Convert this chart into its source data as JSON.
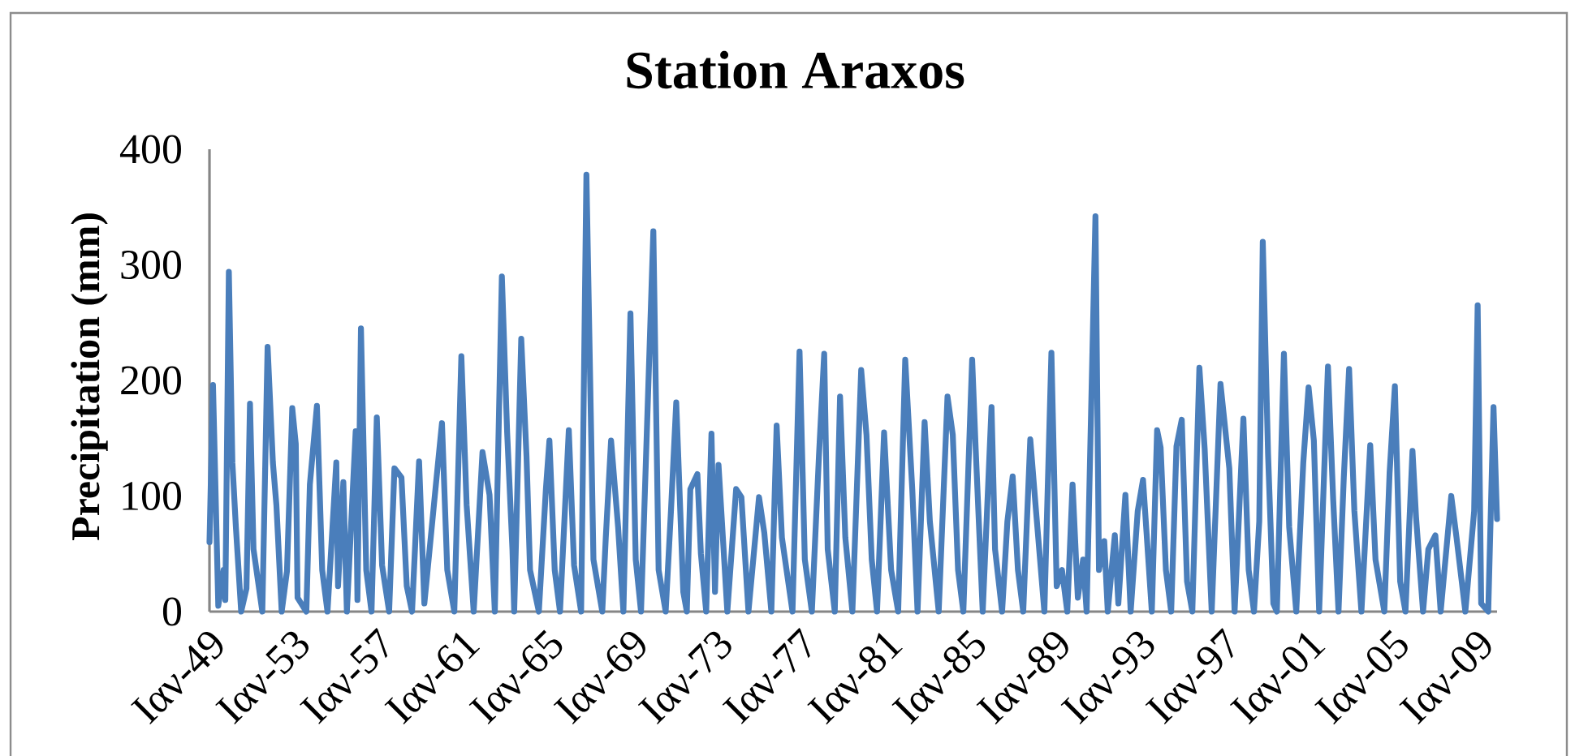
{
  "chart_data": {
    "type": "line",
    "title": "Station Araxos",
    "ylabel": "Precipitation (mm)",
    "marker": "none",
    "ylim": [
      0,
      400
    ],
    "yticks": [
      0,
      100,
      200,
      300,
      400
    ],
    "xlim": [
      "1949-01",
      "2009-12"
    ],
    "xticks": [
      {
        "value": "1949-01",
        "label": "Ιαν-49"
      },
      {
        "value": "1953-01",
        "label": "Ιαν-53"
      },
      {
        "value": "1957-01",
        "label": "Ιαν-57"
      },
      {
        "value": "1961-01",
        "label": "Ιαν-61"
      },
      {
        "value": "1965-01",
        "label": "Ιαν-65"
      },
      {
        "value": "1969-01",
        "label": "Ιαν-69"
      },
      {
        "value": "1973-01",
        "label": "Ιαν-73"
      },
      {
        "value": "1977-01",
        "label": "Ιαν-77"
      },
      {
        "value": "1981-01",
        "label": "Ιαν-81"
      },
      {
        "value": "1985-01",
        "label": "Ιαν-85"
      },
      {
        "value": "1989-01",
        "label": "Ιαν-89"
      },
      {
        "value": "1993-01",
        "label": "Ιαν-93"
      },
      {
        "value": "1997-01",
        "label": "Ιαν-97"
      },
      {
        "value": "2001-01",
        "label": "Ιαν-01"
      },
      {
        "value": "2005-01",
        "label": "Ιαν-05"
      },
      {
        "value": "2009-01",
        "label": "Ιαν-09"
      }
    ],
    "x": [
      "1949-01",
      "1949-03",
      "1949-06",
      "1949-09",
      "1949-10",
      "1949-12",
      "1950-02",
      "1950-04",
      "1950-07",
      "1950-10",
      "1950-12",
      "1951-02",
      "1951-07",
      "1951-10",
      "1952-01",
      "1952-03",
      "1952-06",
      "1952-09",
      "1952-12",
      "1953-02",
      "1953-03",
      "1953-08",
      "1953-10",
      "1954-02",
      "1954-05",
      "1954-08",
      "1955-01",
      "1955-02",
      "1955-05",
      "1955-07",
      "1955-12",
      "1956-01",
      "1956-03",
      "1956-06",
      "1956-09",
      "1956-12",
      "1957-03",
      "1957-07",
      "1957-10",
      "1958-02",
      "1958-05",
      "1958-08",
      "1958-12",
      "1959-03",
      "1959-10",
      "1960-01",
      "1960-04",
      "1960-08",
      "1960-12",
      "1961-03",
      "1961-07",
      "1961-12",
      "1962-04",
      "1962-07",
      "1962-11",
      "1963-02",
      "1963-05",
      "1963-06",
      "1963-10",
      "1964-01",
      "1964-03",
      "1964-08",
      "1964-12",
      "1965-02",
      "1965-05",
      "1965-08",
      "1966-01",
      "1966-04",
      "1966-08",
      "1966-11",
      "1967-03",
      "1967-08",
      "1967-10",
      "1968-01",
      "1968-05",
      "1968-08",
      "1968-12",
      "1969-03",
      "1969-06",
      "1970-01",
      "1970-04",
      "1970-08",
      "1970-11",
      "1971-02",
      "1971-06",
      "1971-08",
      "1971-10",
      "1972-02",
      "1972-04",
      "1972-07",
      "1972-10",
      "1972-12",
      "1973-02",
      "1973-07",
      "1973-12",
      "1974-03",
      "1974-07",
      "1975-01",
      "1975-04",
      "1975-08",
      "1975-11",
      "1976-02",
      "1976-08",
      "1976-12",
      "1977-03",
      "1977-07",
      "1977-11",
      "1978-02",
      "1978-04",
      "1978-08",
      "1978-11",
      "1979-02",
      "1979-06",
      "1979-11",
      "1980-02",
      "1980-05",
      "1980-08",
      "1980-12",
      "1981-04",
      "1981-08",
      "1981-12",
      "1982-04",
      "1982-07",
      "1982-11",
      "1983-02",
      "1983-07",
      "1983-12",
      "1984-03",
      "1984-06",
      "1984-09",
      "1985-02",
      "1985-04",
      "1985-08",
      "1986-01",
      "1986-03",
      "1986-07",
      "1986-10",
      "1987-01",
      "1987-04",
      "1987-07",
      "1987-11",
      "1988-02",
      "1988-07",
      "1988-11",
      "1989-02",
      "1989-05",
      "1989-08",
      "1989-11",
      "1990-02",
      "1990-05",
      "1990-07",
      "1990-12",
      "1991-02",
      "1991-05",
      "1991-07",
      "1991-11",
      "1992-01",
      "1992-05",
      "1992-08",
      "1992-12",
      "1993-03",
      "1993-08",
      "1993-11",
      "1994-01",
      "1994-04",
      "1994-07",
      "1994-10",
      "1995-01",
      "1995-04",
      "1995-07",
      "1995-11",
      "1996-02",
      "1996-06",
      "1996-11",
      "1997-04",
      "1997-07",
      "1997-12",
      "1998-03",
      "1998-06",
      "1998-09",
      "1998-11",
      "1999-02",
      "1999-05",
      "1999-07",
      "1999-11",
      "2000-02",
      "2000-06",
      "2000-10",
      "2001-01",
      "2001-04",
      "2001-07",
      "2001-12",
      "2002-03",
      "2002-06",
      "2002-09",
      "2002-12",
      "2003-03",
      "2003-07",
      "2003-12",
      "2004-03",
      "2004-08",
      "2004-11",
      "2005-02",
      "2005-05",
      "2005-08",
      "2005-12",
      "2006-02",
      "2006-06",
      "2006-09",
      "2007-01",
      "2007-04",
      "2007-10",
      "2008-01",
      "2008-06",
      "2008-11",
      "2009-01",
      "2009-03",
      "2009-07",
      "2009-10",
      "2009-12"
    ],
    "series": [
      {
        "color": "#4a7ebb",
        "values": [
          60,
          196,
          5,
          36,
          10,
          294,
          129,
          73,
          0,
          20,
          180,
          54,
          0,
          229,
          129,
          92,
          0,
          35,
          176,
          145,
          12,
          0,
          110,
          178,
          36,
          0,
          129,
          22,
          112,
          0,
          156,
          10,
          245,
          36,
          0,
          168,
          40,
          0,
          124,
          116,
          22,
          0,
          130,
          7,
          117,
          163,
          36,
          0,
          221,
          92,
          0,
          138,
          101,
          0,
          290,
          155,
          54,
          0,
          236,
          134,
          36,
          0,
          106,
          148,
          36,
          0,
          157,
          40,
          0,
          378,
          45,
          0,
          64,
          148,
          73,
          0,
          258,
          45,
          0,
          329,
          36,
          0,
          87,
          181,
          17,
          0,
          106,
          119,
          50,
          0,
          154,
          17,
          127,
          0,
          106,
          99,
          0,
          99,
          68,
          0,
          161,
          64,
          0,
          225,
          45,
          0,
          134,
          223,
          54,
          0,
          186,
          64,
          0,
          209,
          153,
          45,
          0,
          155,
          36,
          0,
          218,
          106,
          0,
          164,
          78,
          0,
          186,
          153,
          36,
          0,
          218,
          141,
          0,
          177,
          54,
          0,
          78,
          117,
          36,
          0,
          149,
          92,
          0,
          224,
          22,
          36,
          0,
          110,
          12,
          45,
          0,
          342,
          36,
          61,
          0,
          66,
          7,
          101,
          0,
          87,
          114,
          0,
          157,
          142,
          36,
          0,
          143,
          166,
          26,
          0,
          211,
          141,
          0,
          197,
          124,
          0,
          167,
          36,
          0,
          78,
          320,
          136,
          7,
          0,
          223,
          73,
          0,
          129,
          194,
          148,
          0,
          212,
          96,
          0,
          116,
          210,
          87,
          0,
          144,
          45,
          0,
          120,
          195,
          26,
          0,
          139,
          82,
          0,
          54,
          66,
          0,
          100,
          64,
          0,
          87,
          265,
          7,
          0,
          177,
          80
        ]
      }
    ]
  }
}
